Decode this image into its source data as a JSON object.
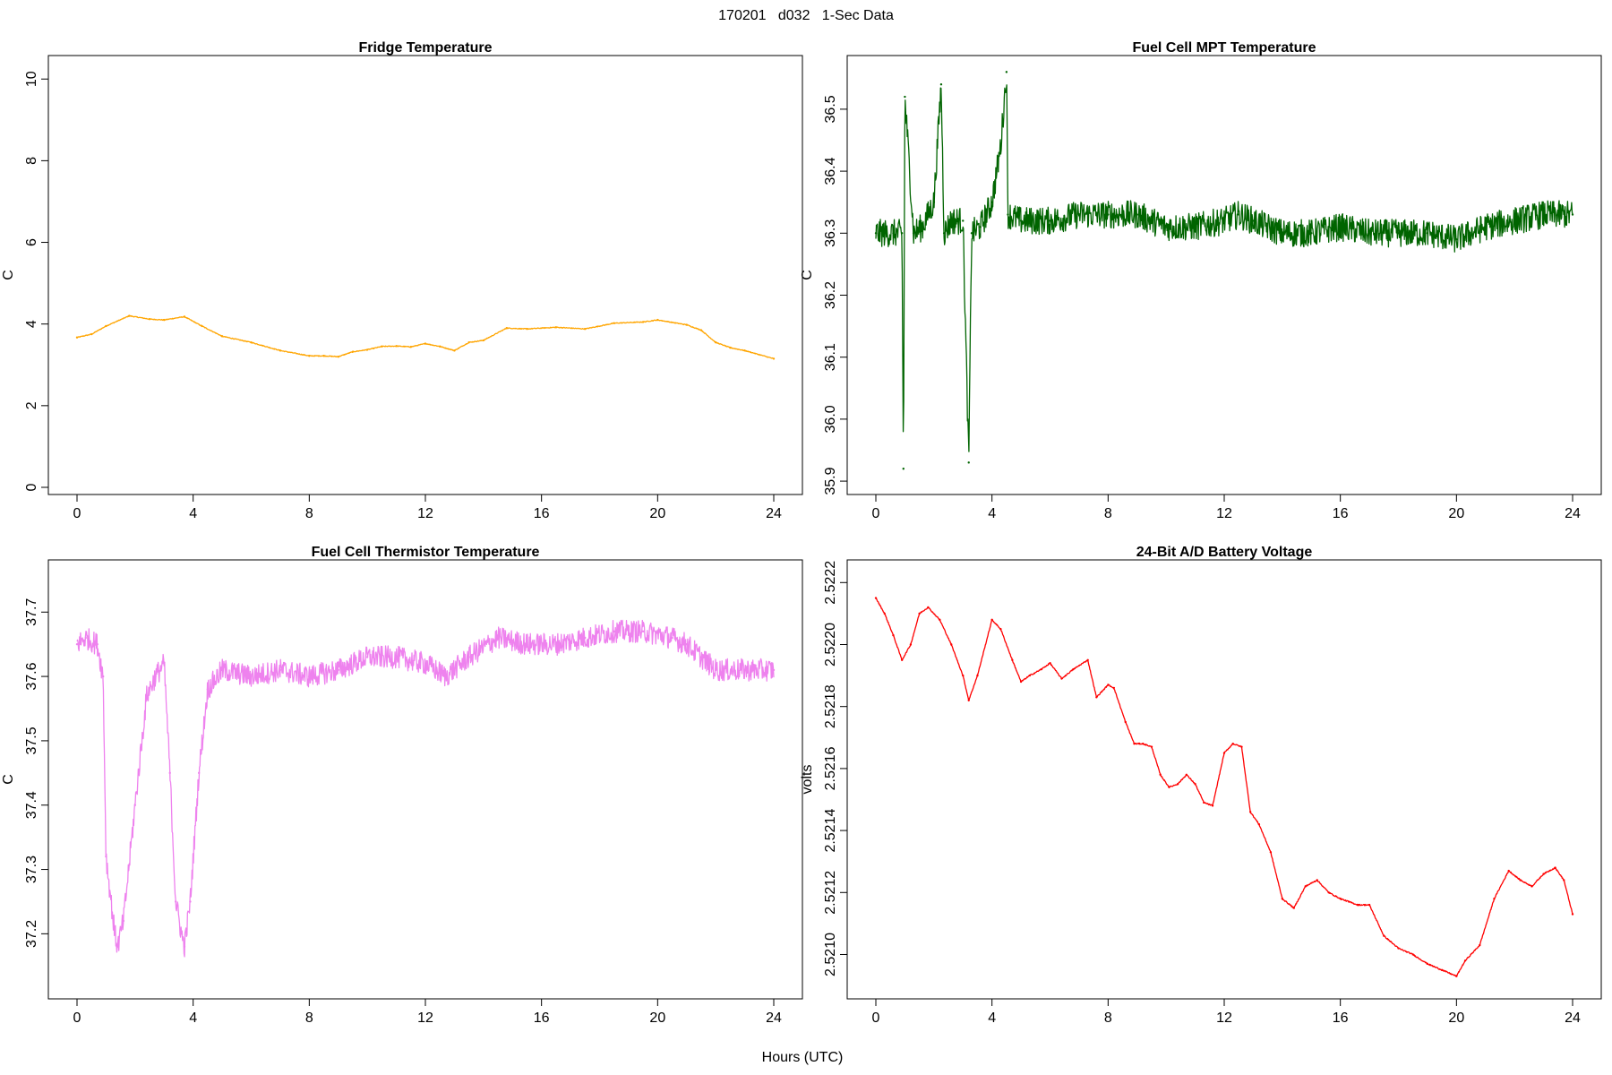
{
  "page_title": "170201   d032   1-Sec Data",
  "common_xlabel": "Hours (UTC)",
  "chart_data": [
    {
      "type": "line",
      "title": "Fridge Temperature",
      "ylabel": "C",
      "xlabel": "",
      "color": "#FFA500",
      "xlim": [
        0,
        24
      ],
      "ylim": [
        0,
        10.4
      ],
      "x_ticks": [
        0,
        4,
        8,
        12,
        16,
        20,
        24
      ],
      "y_ticks": [
        0,
        2,
        4,
        6,
        8,
        10
      ],
      "y_tick_labels": [
        "0",
        "2",
        "4",
        "6",
        "8",
        "10"
      ],
      "noise": 0.02,
      "x": [
        0,
        0.5,
        1.0,
        1.8,
        2.5,
        3.0,
        3.7,
        4.3,
        5.0,
        6.0,
        7.0,
        8.0,
        8.5,
        9.0,
        9.5,
        10.0,
        10.5,
        11.0,
        11.5,
        12.0,
        12.5,
        13.0,
        13.5,
        14.0,
        14.8,
        15.5,
        16.5,
        17.5,
        18.5,
        19.5,
        20.0,
        21.0,
        21.5,
        22.0,
        22.5,
        23.0,
        24.0
      ],
      "y": [
        3.67,
        3.75,
        3.95,
        4.2,
        4.12,
        4.1,
        4.18,
        3.95,
        3.7,
        3.55,
        3.35,
        3.22,
        3.22,
        3.2,
        3.32,
        3.37,
        3.45,
        3.46,
        3.44,
        3.52,
        3.45,
        3.35,
        3.55,
        3.6,
        3.9,
        3.88,
        3.92,
        3.88,
        4.02,
        4.05,
        4.1,
        3.98,
        3.85,
        3.55,
        3.42,
        3.35,
        3.15
      ]
    },
    {
      "type": "line",
      "title": "Fuel Cell MPT Temperature",
      "ylabel": "C",
      "xlabel": "",
      "color": "#006400",
      "xlim": [
        0,
        24
      ],
      "ylim": [
        35.89,
        36.575
      ],
      "x_ticks": [
        0,
        4,
        8,
        12,
        16,
        20,
        24
      ],
      "y_ticks": [
        35.9,
        36.0,
        36.1,
        36.2,
        36.3,
        36.4,
        36.5
      ],
      "y_tick_labels": [
        "35.9",
        "36.0",
        "36.1",
        "36.2",
        "36.3",
        "36.4",
        "36.5"
      ],
      "noise": 0.045,
      "x": [
        0,
        0.3,
        0.6,
        0.9,
        0.95,
        1.0,
        1.3,
        1.6,
        2.0,
        2.25,
        2.35,
        2.6,
        3.0,
        3.2,
        3.3,
        3.6,
        4.0,
        4.3,
        4.5,
        4.55,
        5.0,
        6.0,
        7.0,
        8.0,
        9.0,
        10.0,
        11.0,
        12.0,
        12.5,
        13.0,
        14.0,
        15.0,
        16.0,
        17.0,
        18.0,
        19.0,
        20.0,
        21.0,
        22.0,
        23.0,
        24.0
      ],
      "y": [
        36.3,
        36.3,
        36.3,
        36.3,
        35.92,
        36.52,
        36.3,
        36.31,
        36.35,
        36.54,
        36.3,
        36.32,
        36.32,
        35.93,
        36.3,
        36.31,
        36.35,
        36.44,
        36.56,
        36.33,
        36.32,
        36.32,
        36.33,
        36.33,
        36.33,
        36.31,
        36.31,
        36.32,
        36.33,
        36.32,
        36.3,
        36.3,
        36.31,
        36.3,
        36.3,
        36.3,
        36.29,
        36.31,
        36.32,
        36.33,
        36.33
      ]
    },
    {
      "type": "line",
      "title": "Fuel Cell Thermistor Temperature",
      "ylabel": "C",
      "xlabel": "",
      "color": "#EE82EE",
      "xlim": [
        0,
        24
      ],
      "ylim": [
        37.11,
        37.77
      ],
      "x_ticks": [
        0,
        4,
        8,
        12,
        16,
        20,
        24
      ],
      "y_ticks": [
        37.2,
        37.3,
        37.4,
        37.5,
        37.6,
        37.7
      ],
      "y_tick_labels": [
        "37.2",
        "37.3",
        "37.4",
        "37.5",
        "37.6",
        "37.7"
      ],
      "noise": 0.035,
      "x": [
        0,
        0.3,
        0.7,
        0.9,
        1.0,
        1.3,
        1.4,
        1.6,
        2.0,
        2.4,
        2.7,
        3.0,
        3.2,
        3.4,
        3.6,
        3.7,
        3.9,
        4.2,
        4.5,
        5.0,
        6.0,
        7.0,
        8.0,
        9.0,
        10.0,
        11.0,
        12.0,
        12.7,
        13.5,
        14.5,
        15.5,
        16.5,
        17.5,
        18.5,
        19.5,
        20.5,
        21.0,
        21.5,
        22.0,
        23.0,
        24.0
      ],
      "y": [
        37.65,
        37.66,
        37.65,
        37.6,
        37.32,
        37.2,
        37.18,
        37.22,
        37.4,
        37.57,
        37.6,
        37.62,
        37.45,
        37.25,
        37.2,
        37.18,
        37.25,
        37.45,
        37.58,
        37.61,
        37.6,
        37.61,
        37.6,
        37.61,
        37.63,
        37.63,
        37.62,
        37.6,
        37.63,
        37.66,
        37.65,
        37.65,
        37.66,
        37.67,
        37.67,
        37.66,
        37.65,
        37.63,
        37.61,
        37.61,
        37.61
      ]
    },
    {
      "type": "line",
      "title": "24-Bit A/D Battery Voltage",
      "ylabel": "volts",
      "xlabel": "",
      "color": "#FF0000",
      "xlim": [
        0,
        24
      ],
      "ylim": [
        2.52088,
        2.52225
      ],
      "x_ticks": [
        0,
        4,
        8,
        12,
        16,
        20,
        24
      ],
      "y_ticks": [
        2.521,
        2.5212,
        2.5214,
        2.5216,
        2.5218,
        2.522,
        2.5222
      ],
      "y_tick_labels": [
        "2.5210",
        "2.5212",
        "2.5214",
        "2.5216",
        "2.5218",
        "2.5220",
        "2.5222"
      ],
      "noise": 4e-06,
      "x": [
        0,
        0.3,
        0.6,
        0.9,
        1.2,
        1.5,
        1.8,
        2.2,
        2.6,
        3.0,
        3.2,
        3.5,
        4.0,
        4.3,
        4.7,
        5.0,
        5.3,
        5.7,
        6.0,
        6.4,
        6.8,
        7.3,
        7.6,
        8.0,
        8.2,
        8.6,
        8.9,
        9.2,
        9.5,
        9.8,
        10.1,
        10.4,
        10.7,
        11.0,
        11.3,
        11.6,
        12.0,
        12.3,
        12.6,
        12.9,
        13.2,
        13.6,
        14.0,
        14.4,
        14.8,
        15.2,
        15.6,
        16.0,
        16.3,
        16.6,
        17.0,
        17.5,
        18.0,
        18.5,
        19.0,
        19.5,
        20.0,
        20.3,
        20.8,
        21.3,
        21.8,
        22.2,
        22.6,
        23.0,
        23.4,
        23.7,
        24.0
      ],
      "y": [
        2.52215,
        2.5221,
        2.52203,
        2.52195,
        2.522,
        2.5221,
        2.52212,
        2.52208,
        2.522,
        2.5219,
        2.52182,
        2.5219,
        2.52208,
        2.52205,
        2.52195,
        2.52188,
        2.5219,
        2.52192,
        2.52194,
        2.52189,
        2.52192,
        2.52195,
        2.52183,
        2.52187,
        2.52186,
        2.52175,
        2.52168,
        2.52168,
        2.52167,
        2.52158,
        2.52154,
        2.52155,
        2.52158,
        2.52155,
        2.52149,
        2.52148,
        2.52165,
        2.52168,
        2.52167,
        2.52146,
        2.52142,
        2.52133,
        2.52118,
        2.52115,
        2.52122,
        2.52124,
        2.5212,
        2.52118,
        2.52117,
        2.52116,
        2.52116,
        2.52106,
        2.52102,
        2.521,
        2.52097,
        2.52095,
        2.52093,
        2.52098,
        2.52103,
        2.52118,
        2.52127,
        2.52124,
        2.52122,
        2.52126,
        2.52128,
        2.52124,
        2.52113
      ]
    }
  ]
}
